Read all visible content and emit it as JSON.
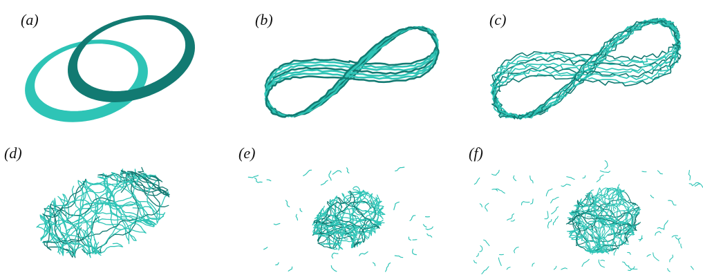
{
  "panels": [
    {
      "id": "a",
      "label": "(a)",
      "kind": "linked-rings",
      "color_light": "#2ec4b6",
      "color_dark": "#127a72"
    },
    {
      "id": "b",
      "label": "(b)",
      "kind": "figure-eight-bundle",
      "color_light": "#2ec4b6",
      "color_dark": "#127a72"
    },
    {
      "id": "c",
      "label": "(c)",
      "kind": "figure-eight-tangled",
      "color_light": "#2ec4b6",
      "color_dark": "#127a72"
    },
    {
      "id": "d",
      "label": "(d)",
      "kind": "turbulent-tangle",
      "color_light": "#2ec4b6",
      "color_dark": "#127a72"
    },
    {
      "id": "e",
      "label": "(e)",
      "kind": "dense-core-sparse",
      "color_light": "#2ec4b6",
      "color_dark": "#127a72"
    },
    {
      "id": "f",
      "label": "(f)",
      "kind": "scattered-fragments",
      "color_light": "#2ec4b6",
      "color_dark": "#127a72"
    }
  ]
}
